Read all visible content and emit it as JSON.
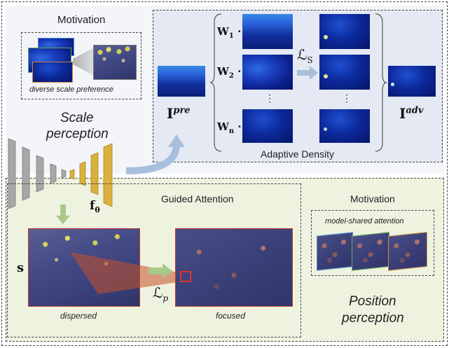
{
  "colors": {
    "top_panel": "#e9edf5",
    "bottom_panel": "#edf2df",
    "encoder_gray": "#a7a7a7",
    "decoder_gold": "#d9b13c",
    "arrow_blue": "#a8bfdc",
    "arrow_green": "#a9c98a",
    "frame_red": "#c0392b"
  },
  "top": {
    "motivation_title": "Motivation",
    "motivation_caption": "diverse scale preference",
    "scale_perception": [
      "Scale",
      "perception"
    ],
    "pre_label": "I",
    "pre_sup": "pre",
    "adv_label": "I",
    "adv_sup": "adv",
    "weights": [
      {
        "w": "W",
        "sub": "1"
      },
      {
        "w": "W",
        "sub": "2"
      },
      {
        "w": "W",
        "sub": "n"
      }
    ],
    "dot": "·",
    "vdots": "⋮",
    "loss_s_main": "ℒ",
    "loss_s_sub": "S",
    "adaptive_density": "Adaptive Density"
  },
  "model": {
    "label_main": "f",
    "label_sub": "θ"
  },
  "bottom": {
    "guided_attention_title": "Guided Attention",
    "s_label": "s",
    "dispersed": "dispersed",
    "focused": "focused",
    "loss_p_main": "ℒ",
    "loss_p_sub": "p",
    "motivation_title": "Motivation",
    "motivation_caption": "model-shared attention",
    "position_perception": [
      "Position",
      "perception"
    ]
  }
}
